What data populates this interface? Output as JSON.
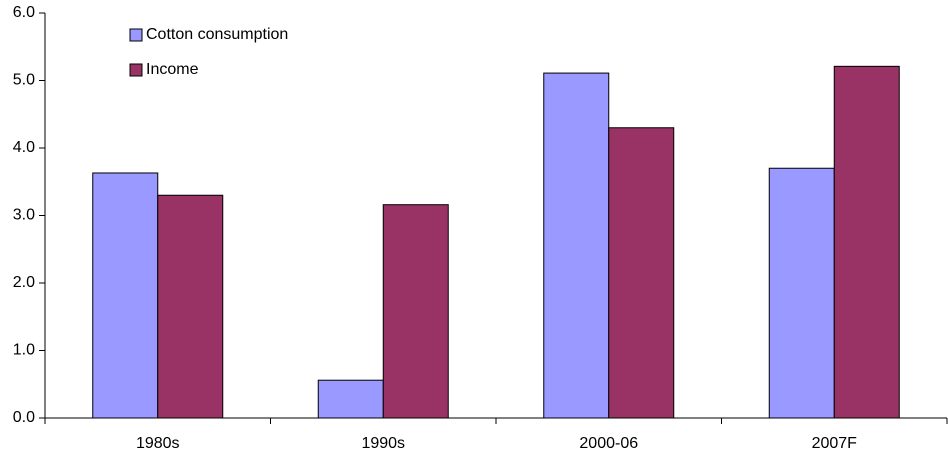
{
  "chart_data": {
    "type": "bar",
    "categories": [
      "1980s",
      "1990s",
      "2000-06",
      "2007F"
    ],
    "series": [
      {
        "name": "Cotton consumption",
        "color": "#9999ff",
        "values": [
          3.63,
          0.56,
          5.11,
          3.7
        ]
      },
      {
        "name": "Income",
        "color": "#993366",
        "values": [
          3.3,
          3.16,
          4.3,
          5.21
        ]
      }
    ],
    "ylim": [
      0,
      6
    ],
    "yticks": [
      {
        "value": 0,
        "label": "0.0"
      },
      {
        "value": 1,
        "label": "1.0"
      },
      {
        "value": 2,
        "label": "2.0"
      },
      {
        "value": 3,
        "label": "3.0"
      },
      {
        "value": 4,
        "label": "4.0"
      },
      {
        "value": 5,
        "label": "5.0"
      },
      {
        "value": 6,
        "label": "6.0"
      }
    ],
    "grid": false,
    "legend": "top-left"
  }
}
